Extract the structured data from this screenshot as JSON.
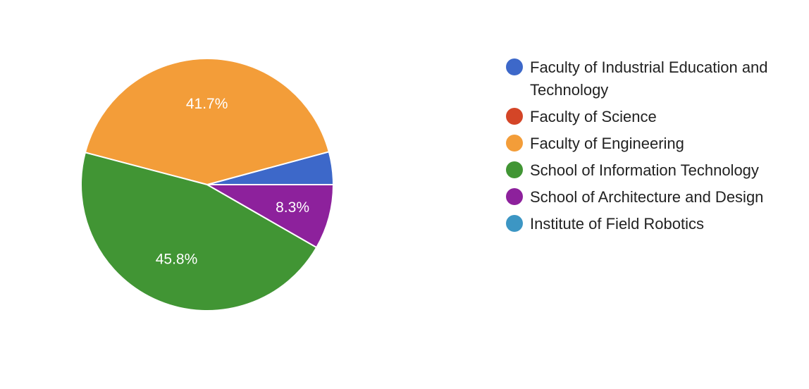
{
  "chart_data": {
    "type": "pie",
    "title": "",
    "categories": [
      "Faculty of Industrial Education and Technology",
      "Faculty of Science",
      "Faculty of Engineering",
      "School of Information Technology",
      "School of Architecture and Design",
      "Institute of Field Robotics"
    ],
    "values": [
      4.2,
      0,
      41.7,
      45.8,
      8.3,
      0
    ],
    "colors": [
      "#3d68c9",
      "#d44527",
      "#f39d39",
      "#419534",
      "#8d219c",
      "#3c96c4"
    ],
    "data_labels": [
      "",
      "",
      "41.7%",
      "45.8%",
      "8.3%",
      ""
    ],
    "legend_position": "right",
    "start_angle": "3 o'clock, counterclockwise"
  }
}
